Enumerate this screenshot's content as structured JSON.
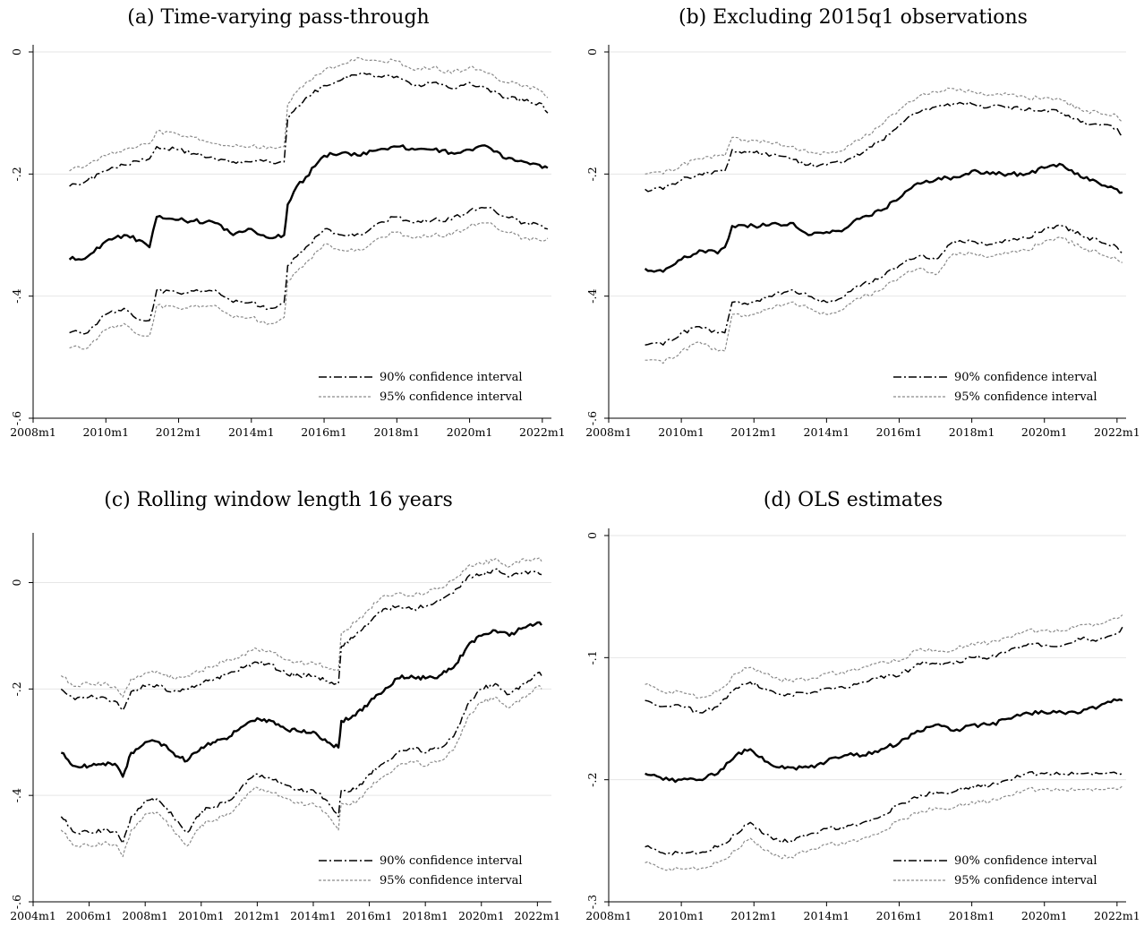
{
  "chart_data": [
    {
      "id": "a",
      "type": "line",
      "title": "(a) Time-varying pass-through",
      "x_ticks": [
        "2008m1",
        "2010m1",
        "2012m1",
        "2014m1",
        "2016m1",
        "2018m1",
        "2020m1",
        "2022m1"
      ],
      "y_ticks": [
        "0",
        "-.2",
        "-.4",
        "-.6"
      ],
      "x_range": [
        2008.0,
        2022.25
      ],
      "ylim": [
        -0.6,
        0
      ],
      "grid": true,
      "legend": {
        "position": "bottom-right",
        "entries": [
          "90% confidence interval",
          "95% confidence interval"
        ]
      },
      "x": [
        2009.0,
        2009.5,
        2010.0,
        2010.5,
        2011.0,
        2011.2,
        2011.4,
        2012.0,
        2013.0,
        2013.5,
        2014.0,
        2014.5,
        2014.9,
        2015.0,
        2015.25,
        2015.5,
        2016.0,
        2016.5,
        2017.0,
        2017.5,
        2018.0,
        2018.5,
        2019.0,
        2019.5,
        2020.0,
        2020.5,
        2021.0,
        2021.5,
        2022.0,
        2022.15
      ],
      "series": [
        {
          "name": "",
          "role": "estimate",
          "values": [
            -0.34,
            -0.335,
            -0.31,
            -0.3,
            -0.31,
            -0.32,
            -0.27,
            -0.275,
            -0.28,
            -0.3,
            -0.29,
            -0.305,
            -0.3,
            -0.25,
            -0.22,
            -0.205,
            -0.17,
            -0.165,
            -0.17,
            -0.16,
            -0.155,
            -0.16,
            -0.16,
            -0.165,
            -0.16,
            -0.155,
            -0.175,
            -0.18,
            -0.19,
            -0.19
          ]
        },
        {
          "name": "90% confidence interval",
          "role": "ci90",
          "values": [
            -0.22,
            -0.21,
            -0.195,
            -0.185,
            -0.175,
            -0.175,
            -0.155,
            -0.16,
            -0.175,
            -0.18,
            -0.18,
            -0.18,
            -0.18,
            -0.11,
            -0.09,
            -0.075,
            -0.055,
            -0.045,
            -0.035,
            -0.04,
            -0.04,
            -0.055,
            -0.05,
            -0.06,
            -0.05,
            -0.06,
            -0.075,
            -0.08,
            -0.085,
            -0.1
          ]
        },
        {
          "name": "95% confidence interval",
          "role": "ci95-upper",
          "values": [
            -0.195,
            -0.185,
            -0.17,
            -0.16,
            -0.15,
            -0.15,
            -0.13,
            -0.135,
            -0.15,
            -0.155,
            -0.155,
            -0.155,
            -0.155,
            -0.085,
            -0.065,
            -0.05,
            -0.03,
            -0.02,
            -0.01,
            -0.015,
            -0.015,
            -0.03,
            -0.025,
            -0.035,
            -0.025,
            -0.035,
            -0.05,
            -0.055,
            -0.065,
            -0.075
          ]
        },
        {
          "name": "",
          "role": "ci90-lower",
          "values": [
            -0.46,
            -0.46,
            -0.43,
            -0.42,
            -0.44,
            -0.44,
            -0.39,
            -0.395,
            -0.39,
            -0.41,
            -0.41,
            -0.42,
            -0.41,
            -0.35,
            -0.335,
            -0.32,
            -0.29,
            -0.3,
            -0.3,
            -0.28,
            -0.27,
            -0.28,
            -0.275,
            -0.275,
            -0.26,
            -0.255,
            -0.27,
            -0.28,
            -0.285,
            -0.29
          ]
        },
        {
          "name": "",
          "role": "ci95-lower",
          "values": [
            -0.485,
            -0.485,
            -0.455,
            -0.445,
            -0.465,
            -0.465,
            -0.415,
            -0.42,
            -0.415,
            -0.435,
            -0.435,
            -0.445,
            -0.435,
            -0.375,
            -0.36,
            -0.345,
            -0.315,
            -0.325,
            -0.325,
            -0.305,
            -0.295,
            -0.305,
            -0.3,
            -0.3,
            -0.285,
            -0.28,
            -0.295,
            -0.305,
            -0.31,
            -0.305
          ]
        }
      ]
    },
    {
      "id": "b",
      "type": "line",
      "title": "(b) Excluding 2015q1 observations",
      "x_ticks": [
        "2008m1",
        "2010m1",
        "2012m1",
        "2014m1",
        "2016m1",
        "2018m1",
        "2020m1",
        "2022m1"
      ],
      "y_ticks": [
        "0",
        "-.2",
        "-.4",
        "-.6"
      ],
      "x_range": [
        2008.0,
        2022.25
      ],
      "ylim": [
        -0.6,
        0
      ],
      "grid": true,
      "legend": {
        "position": "bottom-right",
        "entries": [
          "90% confidence interval",
          "95% confidence interval"
        ]
      },
      "x": [
        2009.0,
        2009.5,
        2010.0,
        2010.5,
        2011.0,
        2011.2,
        2011.4,
        2012.0,
        2013.0,
        2013.5,
        2014.0,
        2014.5,
        2015.0,
        2015.5,
        2016.0,
        2016.5,
        2017.0,
        2017.5,
        2018.0,
        2018.5,
        2019.0,
        2019.5,
        2020.0,
        2020.5,
        2021.0,
        2021.5,
        2022.0,
        2022.15
      ],
      "series": [
        {
          "name": "",
          "role": "estimate",
          "values": [
            -0.355,
            -0.36,
            -0.34,
            -0.325,
            -0.33,
            -0.32,
            -0.285,
            -0.285,
            -0.28,
            -0.3,
            -0.295,
            -0.29,
            -0.27,
            -0.26,
            -0.24,
            -0.215,
            -0.21,
            -0.205,
            -0.195,
            -0.2,
            -0.2,
            -0.2,
            -0.19,
            -0.185,
            -0.205,
            -0.215,
            -0.225,
            -0.23
          ]
        },
        {
          "name": "90% confidence interval",
          "role": "ci90",
          "values": [
            -0.225,
            -0.225,
            -0.21,
            -0.2,
            -0.195,
            -0.195,
            -0.16,
            -0.165,
            -0.175,
            -0.185,
            -0.185,
            -0.18,
            -0.165,
            -0.145,
            -0.12,
            -0.1,
            -0.09,
            -0.085,
            -0.085,
            -0.09,
            -0.09,
            -0.095,
            -0.095,
            -0.1,
            -0.115,
            -0.12,
            -0.125,
            -0.14
          ]
        },
        {
          "name": "95% confidence interval",
          "role": "ci95-upper",
          "values": [
            -0.2,
            -0.2,
            -0.185,
            -0.175,
            -0.17,
            -0.17,
            -0.14,
            -0.145,
            -0.155,
            -0.165,
            -0.165,
            -0.16,
            -0.14,
            -0.12,
            -0.095,
            -0.075,
            -0.065,
            -0.06,
            -0.065,
            -0.07,
            -0.07,
            -0.075,
            -0.075,
            -0.08,
            -0.095,
            -0.1,
            -0.105,
            -0.115
          ]
        },
        {
          "name": "",
          "role": "ci90-lower",
          "values": [
            -0.48,
            -0.48,
            -0.46,
            -0.45,
            -0.46,
            -0.46,
            -0.41,
            -0.41,
            -0.39,
            -0.4,
            -0.41,
            -0.4,
            -0.38,
            -0.37,
            -0.35,
            -0.335,
            -0.34,
            -0.31,
            -0.31,
            -0.315,
            -0.31,
            -0.305,
            -0.29,
            -0.285,
            -0.3,
            -0.31,
            -0.32,
            -0.33
          ]
        },
        {
          "name": "",
          "role": "ci95-lower",
          "values": [
            -0.505,
            -0.51,
            -0.49,
            -0.475,
            -0.49,
            -0.49,
            -0.43,
            -0.43,
            -0.41,
            -0.42,
            -0.43,
            -0.42,
            -0.4,
            -0.39,
            -0.37,
            -0.355,
            -0.365,
            -0.33,
            -0.33,
            -0.335,
            -0.33,
            -0.325,
            -0.31,
            -0.305,
            -0.32,
            -0.33,
            -0.34,
            -0.345
          ]
        }
      ]
    },
    {
      "id": "c",
      "type": "line",
      "title": "(c) Rolling window length 16 years",
      "x_ticks": [
        "2004m1",
        "2006m1",
        "2008m1",
        "2010m1",
        "2012m1",
        "2014m1",
        "2016m1",
        "2018m1",
        "2020m1",
        "2022m1"
      ],
      "y_ticks": [
        "0",
        "-.2",
        "-.4",
        "-.6"
      ],
      "x_range": [
        2004.0,
        2022.5
      ],
      "ylim": [
        -0.6,
        0.08
      ],
      "grid": true,
      "legend": {
        "position": "bottom-right",
        "entries": [
          "90% confidence interval",
          "95% confidence interval"
        ]
      },
      "x": [
        2005.0,
        2005.5,
        2006.0,
        2006.5,
        2007.0,
        2007.2,
        2007.5,
        2008.0,
        2008.5,
        2009.0,
        2009.5,
        2010.0,
        2010.5,
        2011.0,
        2011.5,
        2012.0,
        2012.5,
        2013.0,
        2013.5,
        2014.0,
        2014.5,
        2014.9,
        2015.0,
        2015.5,
        2016.0,
        2016.5,
        2017.0,
        2017.5,
        2018.0,
        2018.5,
        2019.0,
        2019.5,
        2020.0,
        2020.5,
        2021.0,
        2021.5,
        2022.0,
        2022.15
      ],
      "series": [
        {
          "name": "",
          "role": "estimate",
          "values": [
            -0.32,
            -0.345,
            -0.345,
            -0.34,
            -0.345,
            -0.365,
            -0.32,
            -0.3,
            -0.3,
            -0.32,
            -0.335,
            -0.31,
            -0.3,
            -0.29,
            -0.27,
            -0.255,
            -0.26,
            -0.275,
            -0.28,
            -0.28,
            -0.3,
            -0.31,
            -0.26,
            -0.25,
            -0.225,
            -0.205,
            -0.18,
            -0.175,
            -0.18,
            -0.175,
            -0.16,
            -0.12,
            -0.1,
            -0.09,
            -0.1,
            -0.085,
            -0.075,
            -0.08
          ]
        },
        {
          "name": "90% confidence interval",
          "role": "ci90",
          "values": [
            -0.2,
            -0.22,
            -0.215,
            -0.215,
            -0.225,
            -0.24,
            -0.205,
            -0.195,
            -0.195,
            -0.205,
            -0.2,
            -0.19,
            -0.18,
            -0.17,
            -0.16,
            -0.15,
            -0.155,
            -0.17,
            -0.175,
            -0.175,
            -0.185,
            -0.19,
            -0.12,
            -0.1,
            -0.075,
            -0.05,
            -0.045,
            -0.05,
            -0.045,
            -0.035,
            -0.02,
            0.01,
            0.015,
            0.025,
            0.01,
            0.02,
            0.02,
            0.015
          ]
        },
        {
          "name": "95% confidence interval",
          "role": "ci95-upper",
          "values": [
            -0.175,
            -0.195,
            -0.19,
            -0.19,
            -0.2,
            -0.215,
            -0.18,
            -0.17,
            -0.17,
            -0.18,
            -0.175,
            -0.165,
            -0.155,
            -0.145,
            -0.135,
            -0.125,
            -0.13,
            -0.145,
            -0.15,
            -0.15,
            -0.16,
            -0.165,
            -0.095,
            -0.075,
            -0.05,
            -0.025,
            -0.02,
            -0.025,
            -0.02,
            -0.01,
            0.005,
            0.03,
            0.035,
            0.045,
            0.03,
            0.045,
            0.045,
            0.04
          ]
        },
        {
          "name": "",
          "role": "ci90-lower",
          "values": [
            -0.44,
            -0.47,
            -0.47,
            -0.465,
            -0.47,
            -0.49,
            -0.44,
            -0.41,
            -0.41,
            -0.44,
            -0.47,
            -0.43,
            -0.42,
            -0.41,
            -0.38,
            -0.36,
            -0.37,
            -0.38,
            -0.39,
            -0.39,
            -0.41,
            -0.44,
            -0.39,
            -0.39,
            -0.36,
            -0.34,
            -0.32,
            -0.31,
            -0.32,
            -0.31,
            -0.29,
            -0.23,
            -0.2,
            -0.19,
            -0.21,
            -0.19,
            -0.17,
            -0.175
          ]
        },
        {
          "name": "",
          "role": "ci95-lower",
          "values": [
            -0.465,
            -0.495,
            -0.495,
            -0.49,
            -0.495,
            -0.515,
            -0.465,
            -0.435,
            -0.435,
            -0.465,
            -0.495,
            -0.455,
            -0.445,
            -0.435,
            -0.405,
            -0.385,
            -0.395,
            -0.405,
            -0.415,
            -0.415,
            -0.435,
            -0.465,
            -0.415,
            -0.415,
            -0.385,
            -0.365,
            -0.345,
            -0.335,
            -0.345,
            -0.335,
            -0.315,
            -0.255,
            -0.225,
            -0.215,
            -0.235,
            -0.215,
            -0.195,
            -0.2
          ]
        }
      ]
    },
    {
      "id": "d",
      "type": "line",
      "title": "(d) OLS estimates",
      "x_ticks": [
        "2008m1",
        "2010m1",
        "2012m1",
        "2014m1",
        "2016m1",
        "2018m1",
        "2020m1",
        "2022m1"
      ],
      "y_ticks": [
        "0",
        "-.1",
        "-.2",
        "-.3"
      ],
      "x_range": [
        2008.0,
        2022.25
      ],
      "ylim": [
        -0.3,
        0
      ],
      "grid": true,
      "legend": {
        "position": "bottom-right",
        "entries": [
          "90% confidence interval",
          "95% confidence interval"
        ]
      },
      "x": [
        2009.0,
        2009.5,
        2010.0,
        2010.5,
        2011.0,
        2011.5,
        2011.9,
        2012.3,
        2012.7,
        2013.0,
        2013.5,
        2014.0,
        2014.5,
        2015.0,
        2015.5,
        2016.0,
        2016.5,
        2017.0,
        2017.5,
        2018.0,
        2018.5,
        2019.0,
        2019.5,
        2020.0,
        2020.5,
        2021.0,
        2021.5,
        2022.0,
        2022.15
      ],
      "series": [
        {
          "name": "",
          "role": "estimate",
          "values": [
            -0.195,
            -0.2,
            -0.2,
            -0.2,
            -0.195,
            -0.18,
            -0.175,
            -0.185,
            -0.19,
            -0.19,
            -0.19,
            -0.185,
            -0.18,
            -0.18,
            -0.175,
            -0.17,
            -0.16,
            -0.155,
            -0.16,
            -0.155,
            -0.155,
            -0.15,
            -0.145,
            -0.145,
            -0.145,
            -0.145,
            -0.14,
            -0.135,
            -0.135
          ]
        },
        {
          "name": "90% confidence interval",
          "role": "ci90",
          "values": [
            -0.135,
            -0.14,
            -0.14,
            -0.145,
            -0.14,
            -0.125,
            -0.12,
            -0.125,
            -0.13,
            -0.13,
            -0.13,
            -0.125,
            -0.125,
            -0.12,
            -0.115,
            -0.115,
            -0.105,
            -0.105,
            -0.105,
            -0.1,
            -0.1,
            -0.095,
            -0.09,
            -0.09,
            -0.09,
            -0.085,
            -0.085,
            -0.08,
            -0.075
          ]
        },
        {
          "name": "95% confidence interval",
          "role": "ci95-upper",
          "values": [
            -0.122,
            -0.128,
            -0.128,
            -0.133,
            -0.128,
            -0.113,
            -0.108,
            -0.113,
            -0.118,
            -0.118,
            -0.118,
            -0.113,
            -0.113,
            -0.108,
            -0.103,
            -0.103,
            -0.094,
            -0.094,
            -0.094,
            -0.088,
            -0.088,
            -0.083,
            -0.078,
            -0.078,
            -0.078,
            -0.073,
            -0.073,
            -0.068,
            -0.065
          ]
        },
        {
          "name": "",
          "role": "ci90-lower",
          "values": [
            -0.255,
            -0.26,
            -0.26,
            -0.26,
            -0.255,
            -0.245,
            -0.235,
            -0.245,
            -0.25,
            -0.25,
            -0.245,
            -0.24,
            -0.24,
            -0.235,
            -0.23,
            -0.22,
            -0.215,
            -0.21,
            -0.21,
            -0.205,
            -0.205,
            -0.2,
            -0.195,
            -0.195,
            -0.195,
            -0.195,
            -0.195,
            -0.195,
            -0.195
          ]
        },
        {
          "name": "",
          "role": "ci95-lower",
          "values": [
            -0.268,
            -0.273,
            -0.273,
            -0.273,
            -0.268,
            -0.258,
            -0.248,
            -0.258,
            -0.263,
            -0.263,
            -0.258,
            -0.253,
            -0.253,
            -0.248,
            -0.243,
            -0.233,
            -0.228,
            -0.223,
            -0.223,
            -0.218,
            -0.218,
            -0.213,
            -0.208,
            -0.208,
            -0.208,
            -0.208,
            -0.208,
            -0.208,
            -0.205
          ]
        }
      ]
    }
  ]
}
